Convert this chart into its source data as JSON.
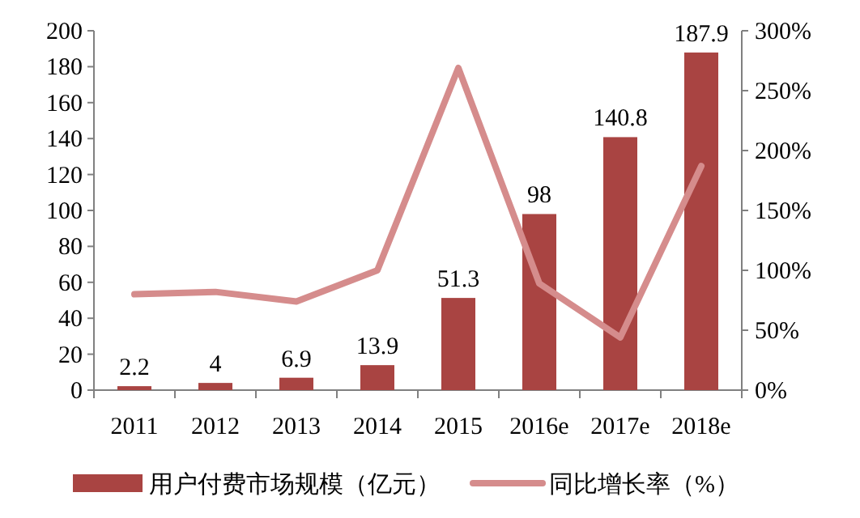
{
  "chart_data": {
    "type": "bar",
    "categories": [
      "2011",
      "2012",
      "2013",
      "2014",
      "2015",
      "2016e",
      "2017e",
      "2018e"
    ],
    "series": [
      {
        "name": "用户付费市场规模（亿元）",
        "color": "#a94442",
        "values": [
          2.2,
          4,
          6.9,
          13.9,
          51.3,
          98,
          140.8,
          187.9
        ],
        "value_labels": [
          "2.2",
          "4",
          "6.9",
          "13.9",
          "51.3",
          "98",
          "140.8",
          "187.9"
        ]
      },
      {
        "name": "同比增长率（%）",
        "type": "line",
        "axis": "y2",
        "color": "#d58c8c",
        "values": [
          80,
          82,
          74,
          100,
          269,
          89,
          44,
          187
        ]
      }
    ],
    "ylim": [
      0,
      200
    ],
    "yticks": [
      0,
      20,
      40,
      60,
      80,
      100,
      120,
      140,
      160,
      180,
      200
    ],
    "y2lim": [
      0,
      300
    ],
    "y2ticks": [
      {
        "value": 0,
        "label": "0%"
      },
      {
        "value": 50,
        "label": "50%"
      },
      {
        "value": 100,
        "label": "100%"
      },
      {
        "value": 150,
        "label": "150%"
      },
      {
        "value": 200,
        "label": "200%"
      },
      {
        "value": 250,
        "label": "250%"
      },
      {
        "value": 300,
        "label": "300%"
      }
    ],
    "grid": false,
    "legend": "bottom"
  }
}
